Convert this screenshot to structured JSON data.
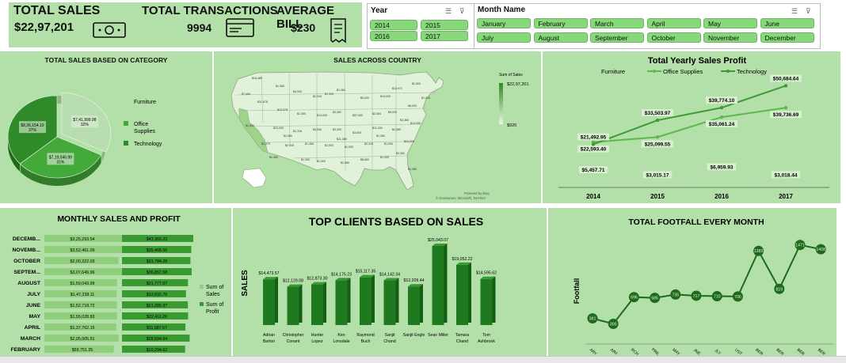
{
  "kpis": [
    {
      "label": "TOTAL SALES",
      "value": "$22,97,201",
      "icon": "cash-icon"
    },
    {
      "label": "TOTAL TRANSACTIONS",
      "value": "9994",
      "icon": "credit-card-icon"
    },
    {
      "label": "AVERAGE BILL",
      "value": "$230",
      "icon": "receipt-icon"
    }
  ],
  "year_slicer": {
    "title": "Year",
    "items": [
      "2014",
      "2015",
      "2016",
      "2017"
    ]
  },
  "month_slicer": {
    "title": "Month Name",
    "items": [
      "January",
      "February",
      "March",
      "April",
      "May",
      "June",
      "July",
      "August",
      "September",
      "October",
      "November",
      "December"
    ]
  },
  "category_panel": {
    "title": "TOTAL SALES BASED ON CATEGORY"
  },
  "map_panel": {
    "title": "SALES ACROSS COUNTRY",
    "legend_title": "Sum of Sales",
    "legend_max": "$22,97,201",
    "legend_min": "$920",
    "credit1": "Powered by Bing",
    "credit2": "© GeoNames, Microsoft, TomTom"
  },
  "map_labels": [
    "$18,485",
    "$1,383",
    "$4,000",
    "$1,315",
    "$1,315",
    "$1,384",
    "$5,000",
    "$13,000",
    "$13,971",
    "$1,500",
    "$7,464",
    "$11,678",
    "$13,378",
    "$1,300",
    "$13,000",
    "$3,382",
    "$57,000",
    "$3,384",
    "$5,000",
    "$8,000",
    "$1,530",
    "$23,000",
    "$1,316",
    "$3,000",
    "$3,300",
    "$3,000",
    "$11,000",
    "$4,385",
    "$14,000",
    "$1,316",
    "$1,379",
    "$2,315",
    "$1,380",
    "$1,000",
    "$1,000",
    "$2,315",
    "$1,000",
    "$13,000",
    "$1,300",
    "$2,580",
    "$8,800",
    "$1,300",
    "$3,382",
    "$1,385",
    "$1,380",
    "$1,300",
    "$1,500",
    "$11,380",
    "$1,380",
    "$3,384"
  ],
  "yearly_panel": {
    "title": "Total Yearly Sales Profit"
  },
  "monthly_panel": {
    "title": "MONTHLY SALES AND PROFIT",
    "legend": [
      "Sum of Sales",
      "Sum of Profit"
    ]
  },
  "clients_panel": {
    "title": "TOP CLIENTS BASED ON SALES",
    "ylabel": "SALES"
  },
  "footfall_panel": {
    "title": "TOTAL FOOTFALL EVERY MONTH",
    "ylabel": "Footfall"
  },
  "colors": {
    "panel": "#b3e0a8",
    "accent": "#1e7b1e",
    "bar_light": "#8fce7a",
    "bar_dark": "#2e8b2e"
  },
  "chart_data": [
    {
      "type": "pie",
      "title": "TOTAL SALES BASED ON CATEGORY",
      "categories": [
        "Furniture",
        "Office Supplies",
        "Technology"
      ],
      "values": [
        741999.98,
        719046.99,
        836154.1
      ],
      "labels": [
        "$7,41,999.98 32%",
        "$7,19,046.99 31%",
        "$8,36,154.10 37%"
      ]
    },
    {
      "type": "line",
      "title": "Total Yearly Sales Profit",
      "x": [
        "2014",
        "2015",
        "2016",
        "2017"
      ],
      "series": [
        {
          "name": "Furniture",
          "values": [
            5457.71,
            3015.17,
            6959.93,
            3018.44
          ],
          "labels": [
            "$5,457.71",
            "$3,015.17",
            "$6,959.93",
            "$3,018.44"
          ]
        },
        {
          "name": "Office Supplies",
          "values": [
            22593.4,
            25099.55,
            35061.24,
            39736.69
          ],
          "labels": [
            "$22,593.40",
            "$25,099.55",
            "$35,061.24",
            "$39,736.69"
          ]
        },
        {
          "name": "Technology",
          "values": [
            21492.95,
            33503.97,
            39774.1,
            50684.64
          ],
          "labels": [
            "$21,492.95",
            "$33,503.97",
            "$39,774.10",
            "$50,684.64"
          ]
        }
      ]
    },
    {
      "type": "bar",
      "title": "MONTHLY SALES AND PROFIT",
      "categories": [
        "DECEMB...",
        "NOVEMB...",
        "OCTOBER",
        "SEPTEM...",
        "AUGUST",
        "JULY",
        "JUNE",
        "MAY",
        "APRIL",
        "MARCH",
        "FEBRUARY"
      ],
      "series": [
        {
          "name": "Sum of Sales",
          "values": [
            325293.54,
            352461.09,
            200322.03,
            307649.96,
            159043.99,
            147238.11,
            152718.72,
            155028.83,
            137762.15,
            205005.51,
            59751.25
          ],
          "labels": [
            "$3,25,293.54",
            "$3,52,461.09",
            "$2,00,322.03",
            "$3,07,649.96",
            "$1,59,043.99",
            "$1,47,238.11",
            "$1,52,718.72",
            "$1,55,028.83",
            "$1,37,762.15",
            "$2,05,005.51",
            "$59,751.25"
          ]
        },
        {
          "name": "Sum of Profit",
          "values": [
            43369.23,
            35468.5,
            31784.2,
            36857.58,
            21777.07,
            13832.75,
            21285.97,
            22411.26,
            11587.57,
            28594.64,
            10294.62
          ],
          "labels": [
            "$43,369.23",
            "$35,468.50",
            "$31,784.20",
            "$36,857.58",
            "$21,777.07",
            "$13,832.75",
            "$21,285.97",
            "$22,411.26",
            "$11,587.57",
            "$28,594.64",
            "$10,294.62"
          ]
        }
      ]
    },
    {
      "type": "bar",
      "title": "TOP CLIENTS BASED ON SALES",
      "ylabel": "SALES",
      "categories": [
        "Adrian Barton",
        "Christopher Conant",
        "Hunter Lopez",
        "Ken Lonsdale",
        "Raymond Buch",
        "Sanjit Chand",
        "Sanjit Engle",
        "Sean Miller",
        "Tamara Chand",
        "Tom Ashbrook"
      ],
      "values": [
        14473.57,
        12129.08,
        12873.3,
        14175.23,
        15117.35,
        14142.34,
        12209.44,
        25043.07,
        19052.22,
        14595.62
      ],
      "labels": [
        "$14,473.57",
        "$12,129.08",
        "$12,873.30",
        "$14,175.23",
        "$15,117.35",
        "$14,142.34",
        "$12,209.44",
        "$25,043.07",
        "$19,052.22",
        "$14,595.62"
      ]
    },
    {
      "type": "line",
      "title": "TOTAL FOOTFALL EVERY MONTH",
      "ylabel": "Footfall",
      "x": [
        "JANUARY",
        "FEBRUARY",
        "MARCH",
        "APRIL",
        "MAY",
        "JUNE",
        "JULY",
        "AUGUST",
        "SEPTEMBER",
        "OCTOBER",
        "NOVEMBER",
        "DECEMBER"
      ],
      "x_tick_labels": [
        "ARY",
        "ARY",
        "RCH",
        "PRIL",
        "MAY",
        "JNE",
        "JLY",
        "UST",
        "BER",
        "BER",
        "BER",
        "BER"
      ],
      "values": [
        381,
        300,
        696,
        685,
        735,
        717,
        710,
        706,
        1383,
        819,
        1471,
        1408
      ]
    }
  ]
}
